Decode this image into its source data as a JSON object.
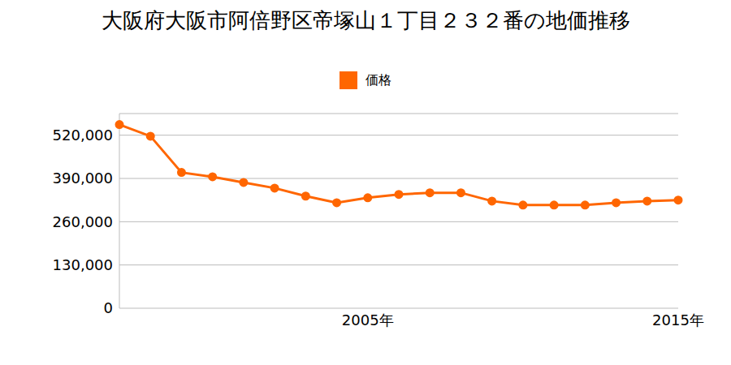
{
  "chart_data": {
    "type": "line",
    "title": "大阪府大阪市阿倍野区帝塚山１丁目２３２番の地価推移",
    "categories": [
      null,
      null,
      null,
      null,
      null,
      null,
      null,
      null,
      "2005年",
      null,
      null,
      null,
      null,
      null,
      null,
      null,
      null,
      null,
      "2015年"
    ],
    "series": [
      {
        "name": "価格",
        "color": "#ff6600",
        "marker": "circle",
        "values": [
          552000,
          517000,
          408000,
          395000,
          378000,
          361000,
          337000,
          317000,
          332000,
          342000,
          347000,
          347000,
          322000,
          310000,
          310000,
          310000,
          317000,
          322000,
          325000
        ]
      }
    ],
    "ylim": [
      0,
      585000
    ],
    "yticks": [
      0,
      {
        "value": 130000,
        "label": "130,000"
      },
      {
        "value": 260000,
        "label": "260,000"
      },
      {
        "value": 390000,
        "label": "390,000"
      },
      {
        "value": 520000,
        "label": "520,000"
      }
    ],
    "grid": true,
    "legend": "top"
  }
}
